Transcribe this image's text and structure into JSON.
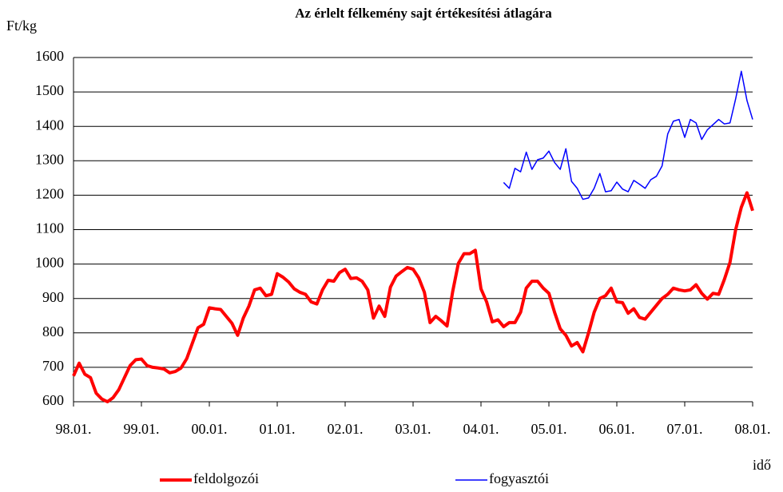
{
  "chart_data": {
    "type": "line",
    "title": "Az érlelt félkemény sajt értékesítési átlagára",
    "y_label": "Ft/kg",
    "x_label": "idő",
    "categories": [
      "98.01.",
      null,
      null,
      null,
      null,
      null,
      null,
      null,
      null,
      null,
      null,
      null,
      "99.01.",
      null,
      null,
      null,
      null,
      null,
      null,
      null,
      null,
      null,
      null,
      null,
      "00.01.",
      null,
      null,
      null,
      null,
      null,
      null,
      null,
      null,
      null,
      null,
      null,
      "01.01.",
      null,
      null,
      null,
      null,
      null,
      null,
      null,
      null,
      null,
      null,
      null,
      "02.01.",
      null,
      null,
      null,
      null,
      null,
      null,
      null,
      null,
      null,
      null,
      null,
      "03.01.",
      null,
      null,
      null,
      null,
      null,
      null,
      null,
      null,
      null,
      null,
      null,
      "04.01.",
      null,
      null,
      null,
      null,
      null,
      null,
      null,
      null,
      null,
      null,
      null,
      "05.01.",
      null,
      null,
      null,
      null,
      null,
      null,
      null,
      null,
      null,
      null,
      null,
      "06.01.",
      null,
      null,
      null,
      null,
      null,
      null,
      null,
      null,
      null,
      null,
      null,
      "07.01.",
      null,
      null,
      null,
      null,
      null,
      null,
      null,
      null,
      null,
      null,
      null,
      "08.01."
    ],
    "series": [
      {
        "name": "feldolgozói",
        "color": "#ff0000",
        "values": [
          675,
          712,
          680,
          670,
          625,
          608,
          600,
          612,
          635,
          670,
          705,
          722,
          724,
          705,
          700,
          698,
          695,
          684,
          688,
          698,
          725,
          770,
          815,
          825,
          873,
          870,
          868,
          848,
          828,
          793,
          843,
          878,
          925,
          930,
          908,
          912,
          972,
          962,
          948,
          928,
          918,
          912,
          890,
          884,
          925,
          953,
          950,
          975,
          985,
          958,
          960,
          950,
          925,
          843,
          878,
          848,
          933,
          965,
          978,
          990,
          985,
          960,
          918,
          830,
          848,
          835,
          820,
          920,
          1002,
          1030,
          1030,
          1040,
          928,
          890,
          832,
          838,
          818,
          830,
          830,
          860,
          930,
          950,
          950,
          930,
          915,
          860,
          812,
          793,
          762,
          772,
          745,
          800,
          860,
          900,
          908,
          930,
          890,
          888,
          857,
          870,
          845,
          840,
          860,
          880,
          900,
          912,
          930,
          925,
          922,
          925,
          940,
          915,
          898,
          915,
          912,
          955,
          1005,
          1100,
          1165,
          1207,
          1155
        ]
      },
      {
        "name": "fogyasztói",
        "color": "#0000ff",
        "values": [
          null,
          null,
          null,
          null,
          null,
          null,
          null,
          null,
          null,
          null,
          null,
          null,
          null,
          null,
          null,
          null,
          null,
          null,
          null,
          null,
          null,
          null,
          null,
          null,
          null,
          null,
          null,
          null,
          null,
          null,
          null,
          null,
          null,
          null,
          null,
          null,
          null,
          null,
          null,
          null,
          null,
          null,
          null,
          null,
          null,
          null,
          null,
          null,
          null,
          null,
          null,
          null,
          null,
          null,
          null,
          null,
          null,
          null,
          null,
          null,
          null,
          null,
          null,
          null,
          null,
          null,
          null,
          null,
          null,
          null,
          null,
          null,
          null,
          null,
          null,
          null,
          1237,
          1220,
          1278,
          1268,
          1325,
          1275,
          1303,
          1308,
          1328,
          1295,
          1275,
          1335,
          1240,
          1220,
          1188,
          1192,
          1220,
          1263,
          1210,
          1213,
          1238,
          1218,
          1210,
          1243,
          1232,
          1220,
          1245,
          1255,
          1285,
          1378,
          1415,
          1420,
          1368,
          1420,
          1410,
          1362,
          1390,
          1405,
          1420,
          1407,
          1410,
          1480,
          1560,
          1475,
          1420
        ]
      }
    ],
    "ylim": [
      600,
      1600
    ],
    "yticks": [
      600,
      700,
      800,
      900,
      1000,
      1100,
      1200,
      1300,
      1400,
      1500,
      1600
    ],
    "grid": true
  }
}
